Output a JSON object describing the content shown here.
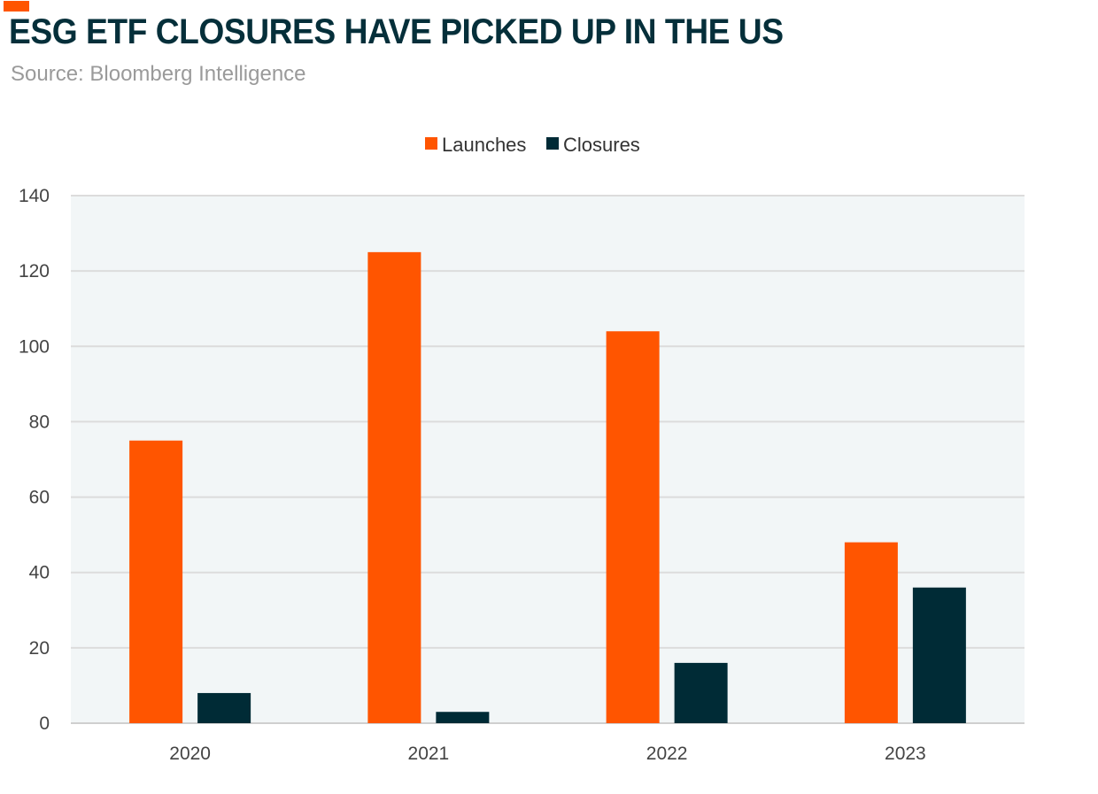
{
  "header": {
    "title": "ESG ETF CLOSURES HAVE PICKED UP IN THE US",
    "source": "Source: Bloomberg Intelligence"
  },
  "chart_data": {
    "type": "bar",
    "categories": [
      "2020",
      "2021",
      "2022",
      "2023"
    ],
    "series": [
      {
        "name": "Launches",
        "values": [
          75,
          125,
          104,
          48
        ],
        "color": "#ff5500"
      },
      {
        "name": "Closures",
        "values": [
          8,
          3,
          16,
          36
        ],
        "color": "#002b36"
      }
    ],
    "ylim": [
      0,
      140
    ],
    "yticks": [
      0,
      20,
      40,
      60,
      80,
      100,
      120,
      140
    ],
    "grid": true,
    "legend": "top-center",
    "plot_background": "#f2f6f7"
  }
}
